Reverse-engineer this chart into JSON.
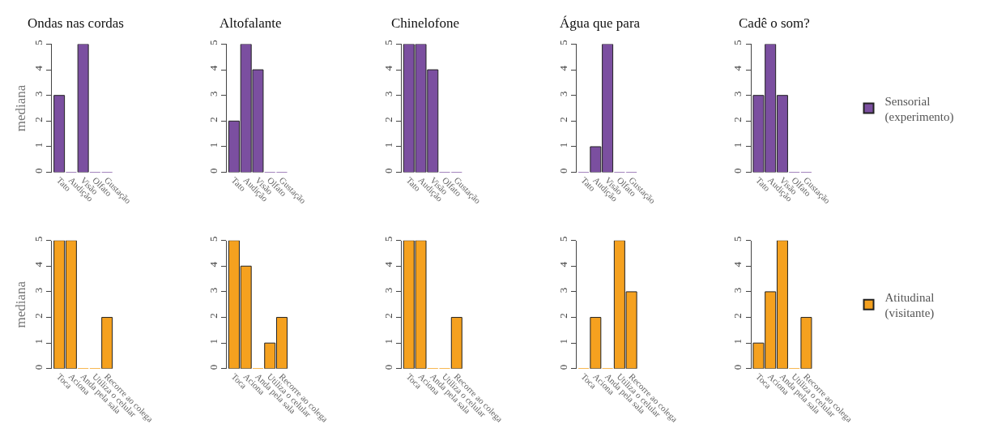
{
  "chart_data": [
    {
      "type": "bar",
      "title": "Ondas nas cordas",
      "ylabel": "mediana",
      "categories": [
        "Tato",
        "Audição",
        "Visão",
        "Olfato",
        "Gustação"
      ],
      "series": [
        {
          "name": "Sensorial (experimento)",
          "color": "#7b4fa0",
          "values": [
            3,
            0,
            5,
            0,
            0
          ]
        }
      ],
      "ylim": [
        0,
        5
      ],
      "yticks": [
        0,
        1,
        2,
        3,
        4,
        5
      ],
      "legend": "right"
    },
    {
      "type": "bar",
      "title": "Altofalante",
      "categories": [
        "Tato",
        "Audição",
        "Visão",
        "Olfato",
        "Gustação"
      ],
      "series": [
        {
          "color": "#7b4fa0",
          "values": [
            2,
            5,
            4,
            0,
            0
          ]
        }
      ],
      "ylim": [
        0,
        5
      ],
      "yticks": [
        0,
        1,
        2,
        3,
        4,
        5
      ]
    },
    {
      "type": "bar",
      "title": "Chinelofone",
      "categories": [
        "Tato",
        "Audição",
        "Visão",
        "Olfato",
        "Gustação"
      ],
      "series": [
        {
          "color": "#7b4fa0",
          "values": [
            5,
            5,
            4,
            0,
            0
          ]
        }
      ],
      "ylim": [
        0,
        5
      ],
      "yticks": [
        0,
        1,
        2,
        3,
        4,
        5
      ]
    },
    {
      "type": "bar",
      "title": "Água que para",
      "categories": [
        "Tato",
        "Audição",
        "Visão",
        "Olfato",
        "Gustação"
      ],
      "series": [
        {
          "color": "#7b4fa0",
          "values": [
            0,
            1,
            5,
            0,
            0
          ]
        }
      ],
      "ylim": [
        0,
        5
      ],
      "yticks": [
        0,
        1,
        2,
        3,
        4,
        5
      ]
    },
    {
      "type": "bar",
      "title": "Cadê o som?",
      "categories": [
        "Tato",
        "Audição",
        "Visão",
        "Olfato",
        "Gustação"
      ],
      "series": [
        {
          "color": "#7b4fa0",
          "values": [
            3,
            5,
            3,
            0,
            0
          ]
        }
      ],
      "ylim": [
        0,
        5
      ],
      "yticks": [
        0,
        1,
        2,
        3,
        4,
        5
      ]
    },
    {
      "type": "bar",
      "ylabel": "mediana",
      "categories": [
        "Toca",
        "Aciona",
        "Anda pela sala",
        "Utiliza o celular",
        "Recorre ao colega"
      ],
      "series": [
        {
          "name": "Atitudinal (visitante)",
          "color": "#f5a11f",
          "values": [
            5,
            5,
            0,
            0,
            2
          ]
        }
      ],
      "ylim": [
        0,
        5
      ],
      "yticks": [
        0,
        1,
        2,
        3,
        4,
        5
      ],
      "legend": "right"
    },
    {
      "type": "bar",
      "categories": [
        "Toca",
        "Aciona",
        "Anda pela sala",
        "Utiliza o celular",
        "Recorre ao colega"
      ],
      "series": [
        {
          "color": "#f5a11f",
          "values": [
            5,
            4,
            0,
            1,
            2
          ]
        }
      ],
      "ylim": [
        0,
        5
      ],
      "yticks": [
        0,
        1,
        2,
        3,
        4,
        5
      ]
    },
    {
      "type": "bar",
      "categories": [
        "Toca",
        "Aciona",
        "Anda pela sala",
        "Utiliza o celular",
        "Recorre ao colega"
      ],
      "series": [
        {
          "color": "#f5a11f",
          "values": [
            5,
            5,
            0,
            0,
            2
          ]
        }
      ],
      "ylim": [
        0,
        5
      ],
      "yticks": [
        0,
        1,
        2,
        3,
        4,
        5
      ]
    },
    {
      "type": "bar",
      "categories": [
        "Toca",
        "Aciona",
        "Anda pela sala",
        "Utiliza o celular",
        "Recorre ao colega"
      ],
      "series": [
        {
          "color": "#f5a11f",
          "values": [
            0,
            2,
            0,
            5,
            3
          ]
        }
      ],
      "ylim": [
        0,
        5
      ],
      "yticks": [
        0,
        1,
        2,
        3,
        4,
        5
      ]
    },
    {
      "type": "bar",
      "categories": [
        "Toca",
        "Aciona",
        "Anda pela sala",
        "Utiliza o celular",
        "Recorre ao colega"
      ],
      "series": [
        {
          "color": "#f5a11f",
          "values": [
            1,
            3,
            5,
            0,
            2
          ]
        }
      ],
      "ylim": [
        0,
        5
      ],
      "yticks": [
        0,
        1,
        2,
        3,
        4,
        5
      ]
    }
  ]
}
